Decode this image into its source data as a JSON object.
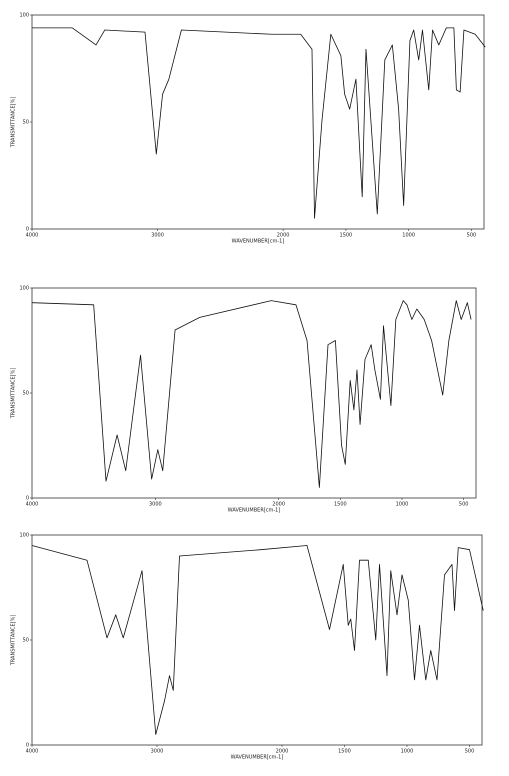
{
  "chart_data": [
    {
      "type": "line",
      "xlabel": "WAVENUMBER[cm-1]",
      "ylabel": "TRANSMITTANCE[%]",
      "color": "#111111",
      "xlim": [
        4000,
        400
      ],
      "ylim": [
        0,
        100
      ],
      "xticks": [
        4000,
        3000,
        2000,
        1500,
        1000,
        500
      ],
      "yticks": [
        0,
        50,
        100
      ],
      "x": [
        4000,
        3680,
        3490,
        3420,
        3100,
        3010,
        2960,
        2910,
        2810,
        2090,
        1860,
        1770,
        1750,
        1690,
        1620,
        1540,
        1510,
        1470,
        1420,
        1370,
        1340,
        1250,
        1190,
        1130,
        1080,
        1040,
        990,
        960,
        920,
        890,
        840,
        810,
        760,
        700,
        640,
        620,
        590,
        560,
        470,
        390
      ],
      "values": [
        94,
        94,
        86,
        93,
        92,
        35,
        63,
        70,
        93,
        91,
        91,
        84,
        5,
        51,
        91,
        81,
        63,
        56,
        70,
        15,
        84,
        7,
        79,
        86,
        56,
        11,
        88,
        93,
        79,
        93,
        65,
        93,
        86,
        94,
        94,
        65,
        64,
        93,
        91,
        85
      ]
    },
    {
      "type": "line",
      "xlabel": "WAVENUMBER[cm-1]",
      "ylabel": "TRANSMITTANCE[%]",
      "color": "#111111",
      "xlim": [
        4000,
        400
      ],
      "ylim": [
        0,
        100
      ],
      "xticks": [
        4000,
        3000,
        2000,
        1500,
        1000,
        500
      ],
      "yticks": [
        0,
        50,
        100
      ],
      "x": [
        4000,
        3500,
        3400,
        3310,
        3240,
        3120,
        3030,
        2980,
        2940,
        2840,
        2640,
        2060,
        1860,
        1770,
        1670,
        1600,
        1540,
        1490,
        1460,
        1420,
        1390,
        1365,
        1340,
        1300,
        1250,
        1220,
        1175,
        1150,
        1090,
        1050,
        990,
        960,
        920,
        880,
        820,
        760,
        670,
        620,
        560,
        520,
        470,
        440
      ],
      "values": [
        93,
        92,
        8,
        30,
        13,
        68,
        9,
        23,
        13,
        80,
        86,
        94,
        92,
        75,
        5,
        73,
        75,
        25,
        16,
        56,
        42,
        61,
        35,
        66,
        73,
        61,
        47,
        82,
        44,
        85,
        94,
        92,
        85,
        90,
        85,
        75,
        49,
        75,
        94,
        85,
        93,
        85
      ]
    },
    {
      "type": "line",
      "xlabel": "WAVENUMBER[cm-1]",
      "ylabel": "TRANSMITTANCE[%]",
      "color": "#111111",
      "xlim": [
        4000,
        400
      ],
      "ylim": [
        0,
        100
      ],
      "xticks": [
        4000,
        3000,
        2000,
        1500,
        1000,
        500
      ],
      "yticks": [
        0,
        50,
        100
      ],
      "x": [
        4000,
        3560,
        3400,
        3330,
        3270,
        3120,
        3010,
        2940,
        2900,
        2870,
        2820,
        2170,
        1800,
        1620,
        1510,
        1470,
        1450,
        1420,
        1380,
        1310,
        1250,
        1220,
        1160,
        1130,
        1080,
        1040,
        990,
        940,
        900,
        850,
        810,
        760,
        700,
        640,
        620,
        590,
        500,
        390
      ],
      "values": [
        95,
        88,
        51,
        62,
        51,
        83,
        5,
        21,
        33,
        26,
        90,
        93,
        95,
        55,
        86,
        57,
        60,
        45,
        88,
        88,
        50,
        86,
        33,
        83,
        62,
        81,
        69,
        31,
        57,
        31,
        45,
        31,
        81,
        86,
        64,
        94,
        93,
        64
      ]
    }
  ]
}
